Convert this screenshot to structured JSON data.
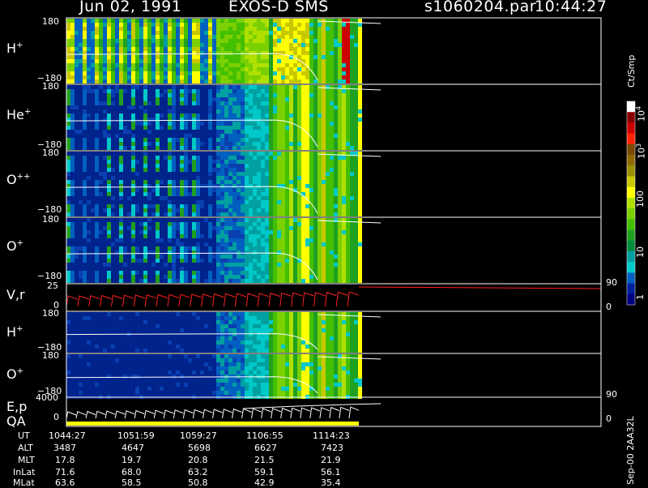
{
  "header": {
    "date": "Jun 02, 1991",
    "instrument": "EXOS-D SMS",
    "file": "s1060204.par",
    "time": "10:44:27"
  },
  "side_label": "Sep-00  2AA32L",
  "chart_data": {
    "type": "heatmap",
    "panels": [
      {
        "id": "h-plus-1",
        "label_base": "H",
        "label_sup": "+",
        "ytick_top": "180",
        "ytick_bottom": "−180",
        "ylim": [
          -180,
          180
        ]
      },
      {
        "id": "he-plus",
        "label_base": "He",
        "label_sup": "+",
        "ytick_top": "180",
        "ytick_bottom": "−180",
        "ylim": [
          -180,
          180
        ]
      },
      {
        "id": "o-plusplus",
        "label_base": "O",
        "label_sup": "++",
        "ytick_top": "180",
        "ytick_bottom": "−180",
        "ylim": [
          -180,
          180
        ]
      },
      {
        "id": "o-plus-1",
        "label_base": "O",
        "label_sup": "+",
        "ytick_top": "180",
        "ytick_bottom": "−180",
        "ylim": [
          -180,
          180
        ]
      },
      {
        "id": "v-r",
        "label_base": "V,r",
        "label_sup": "",
        "ytick_top": "25",
        "ytick_bottom": "0",
        "right_tick_top": "90",
        "right_tick_bottom": "0"
      },
      {
        "id": "h-plus-2",
        "label_base": "H",
        "label_sup": "+",
        "ytick_top": "180",
        "ytick_bottom": "−180",
        "ylim": [
          -180,
          180
        ]
      },
      {
        "id": "o-plus-2",
        "label_base": "O",
        "label_sup": "+",
        "ytick_top": "180",
        "ytick_bottom": "−180",
        "ylim": [
          -180,
          180
        ]
      },
      {
        "id": "e-p-qa",
        "label_base": "E,p",
        "label_line2": "QA",
        "label_sup": "",
        "ytick_top": "4000",
        "ytick_bottom": "0",
        "right_tick_top": "90",
        "right_tick_bottom": "0"
      }
    ],
    "colorbar": {
      "unit": "Ct/Smp",
      "ticks": [
        {
          "label": "10",
          "sup": "4",
          "value": 10000
        },
        {
          "label": "10",
          "sup": "3",
          "value": 1000
        },
        {
          "label": "100",
          "sup": "",
          "value": 100
        },
        {
          "label": "10",
          "sup": "",
          "value": 10
        },
        {
          "label": "1",
          "sup": "",
          "value": 1
        }
      ],
      "colors": [
        "#ffffff",
        "#8b0000",
        "#cc0000",
        "#ff2200",
        "#7a4a00",
        "#8c6a00",
        "#9a9000",
        "#c8c800",
        "#ffff00",
        "#b0e000",
        "#7ad000",
        "#44c000",
        "#20a020",
        "#008c3c",
        "#00a0a0",
        "#00c8c8",
        "#0060c0",
        "#0020a0",
        "#000080"
      ]
    },
    "time_table": {
      "rows": [
        {
          "label": "UT",
          "values": [
            "1044:27",
            "1051:59",
            "1059:27",
            "1106:55",
            "1114:23"
          ]
        },
        {
          "label": "ALT",
          "values": [
            "3487",
            "4647",
            "5698",
            "6627",
            "7423"
          ]
        },
        {
          "label": "MLT",
          "values": [
            "17.8",
            "19.7",
            "20.8",
            "21.5",
            "21.9"
          ]
        },
        {
          "label": "InLat",
          "values": [
            "71.6",
            "68.0",
            "63.2",
            "59.1",
            "56.1"
          ]
        },
        {
          "label": "MLat",
          "values": [
            "63.6",
            "58.5",
            "50.8",
            "42.9",
            "35.4"
          ]
        }
      ]
    }
  }
}
